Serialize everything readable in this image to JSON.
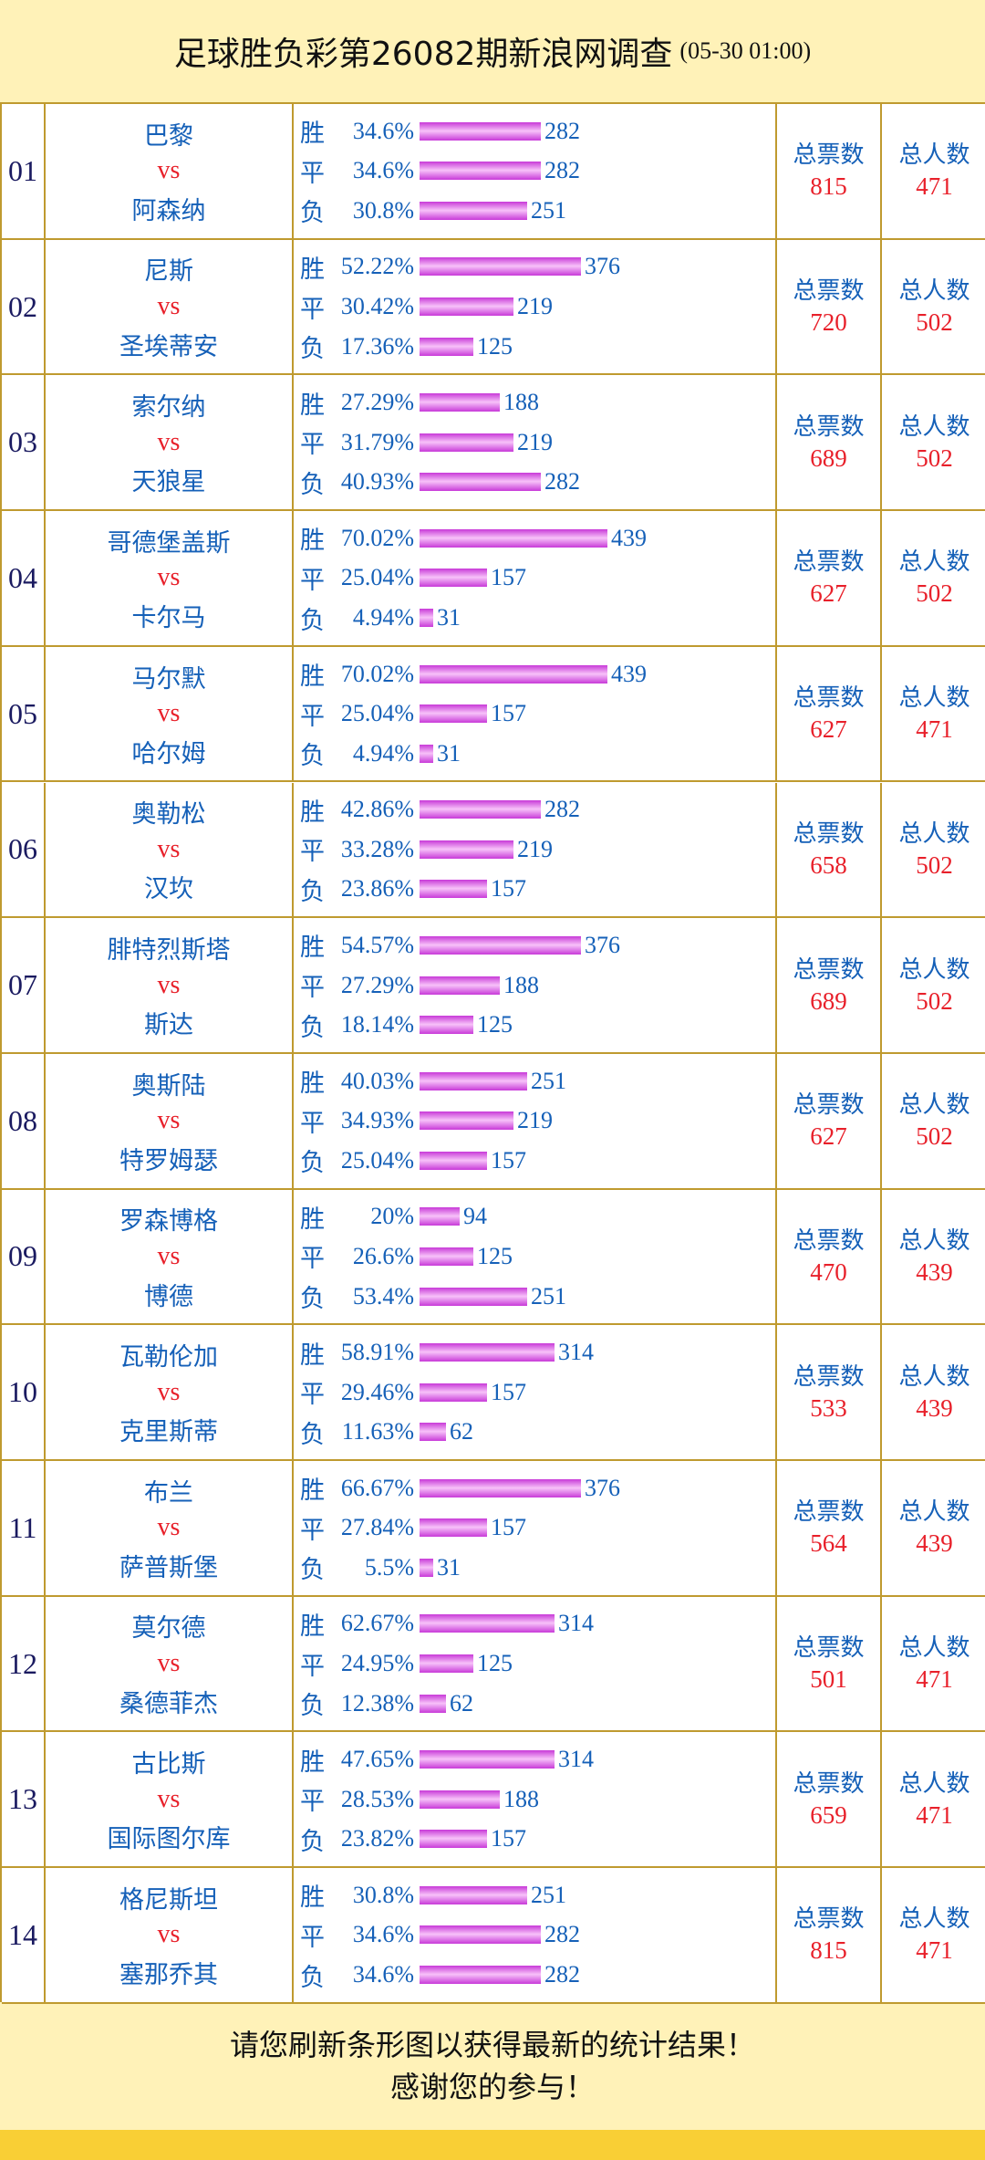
{
  "header": {
    "title": "足球胜负彩第26082期新浪网调查",
    "time": "(05-30 01:00)"
  },
  "labels": {
    "vs": "vs",
    "total_votes": "总票数",
    "total_people": "总人数"
  },
  "colors": {
    "background": "#fff2b8",
    "border": "#bf9a2f",
    "text_blue": "#1560b8",
    "text_red": "#e8202a",
    "bar": "#d94fe6",
    "strip": "#f9cf35"
  },
  "matches": [
    {
      "idx": "01",
      "home": "巴黎",
      "away": "阿森纳",
      "win": {
        "label": "胜",
        "pct": "34.6%",
        "count": 282
      },
      "draw": {
        "label": "平",
        "pct": "34.6%",
        "count": 282
      },
      "lose": {
        "label": "负",
        "pct": "30.8%",
        "count": 251
      },
      "total_votes": "815",
      "total_people": "471"
    },
    {
      "idx": "02",
      "home": "尼斯",
      "away": "圣埃蒂安",
      "win": {
        "label": "胜",
        "pct": "52.22%",
        "count": 376
      },
      "draw": {
        "label": "平",
        "pct": "30.42%",
        "count": 219
      },
      "lose": {
        "label": "负",
        "pct": "17.36%",
        "count": 125
      },
      "total_votes": "720",
      "total_people": "502"
    },
    {
      "idx": "03",
      "home": "索尔纳",
      "away": "天狼星",
      "win": {
        "label": "胜",
        "pct": "27.29%",
        "count": 188
      },
      "draw": {
        "label": "平",
        "pct": "31.79%",
        "count": 219
      },
      "lose": {
        "label": "负",
        "pct": "40.93%",
        "count": 282
      },
      "total_votes": "689",
      "total_people": "502"
    },
    {
      "idx": "04",
      "home": "哥德堡盖斯",
      "away": "卡尔马",
      "win": {
        "label": "胜",
        "pct": "70.02%",
        "count": 439
      },
      "draw": {
        "label": "平",
        "pct": "25.04%",
        "count": 157
      },
      "lose": {
        "label": "负",
        "pct": "4.94%",
        "count": 31
      },
      "total_votes": "627",
      "total_people": "502"
    },
    {
      "idx": "05",
      "home": "马尔默",
      "away": "哈尔姆",
      "win": {
        "label": "胜",
        "pct": "70.02%",
        "count": 439
      },
      "draw": {
        "label": "平",
        "pct": "25.04%",
        "count": 157
      },
      "lose": {
        "label": "负",
        "pct": "4.94%",
        "count": 31
      },
      "total_votes": "627",
      "total_people": "471"
    },
    {
      "idx": "06",
      "home": "奥勒松",
      "away": "汉坎",
      "win": {
        "label": "胜",
        "pct": "42.86%",
        "count": 282
      },
      "draw": {
        "label": "平",
        "pct": "33.28%",
        "count": 219
      },
      "lose": {
        "label": "负",
        "pct": "23.86%",
        "count": 157
      },
      "total_votes": "658",
      "total_people": "502"
    },
    {
      "idx": "07",
      "home": "腓特烈斯塔",
      "away": "斯达",
      "win": {
        "label": "胜",
        "pct": "54.57%",
        "count": 376
      },
      "draw": {
        "label": "平",
        "pct": "27.29%",
        "count": 188
      },
      "lose": {
        "label": "负",
        "pct": "18.14%",
        "count": 125
      },
      "total_votes": "689",
      "total_people": "502"
    },
    {
      "idx": "08",
      "home": "奥斯陆",
      "away": "特罗姆瑟",
      "win": {
        "label": "胜",
        "pct": "40.03%",
        "count": 251
      },
      "draw": {
        "label": "平",
        "pct": "34.93%",
        "count": 219
      },
      "lose": {
        "label": "负",
        "pct": "25.04%",
        "count": 157
      },
      "total_votes": "627",
      "total_people": "502"
    },
    {
      "idx": "09",
      "home": "罗森博格",
      "away": "博德",
      "win": {
        "label": "胜",
        "pct": "20%",
        "count": 94
      },
      "draw": {
        "label": "平",
        "pct": "26.6%",
        "count": 125
      },
      "lose": {
        "label": "负",
        "pct": "53.4%",
        "count": 251
      },
      "total_votes": "470",
      "total_people": "439"
    },
    {
      "idx": "10",
      "home": "瓦勒伦加",
      "away": "克里斯蒂",
      "win": {
        "label": "胜",
        "pct": "58.91%",
        "count": 314
      },
      "draw": {
        "label": "平",
        "pct": "29.46%",
        "count": 157
      },
      "lose": {
        "label": "负",
        "pct": "11.63%",
        "count": 62
      },
      "total_votes": "533",
      "total_people": "439"
    },
    {
      "idx": "11",
      "home": "布兰",
      "away": "萨普斯堡",
      "win": {
        "label": "胜",
        "pct": "66.67%",
        "count": 376
      },
      "draw": {
        "label": "平",
        "pct": "27.84%",
        "count": 157
      },
      "lose": {
        "label": "负",
        "pct": "5.5%",
        "count": 31
      },
      "total_votes": "564",
      "total_people": "439"
    },
    {
      "idx": "12",
      "home": "莫尔德",
      "away": "桑德菲杰",
      "win": {
        "label": "胜",
        "pct": "62.67%",
        "count": 314
      },
      "draw": {
        "label": "平",
        "pct": "24.95%",
        "count": 125
      },
      "lose": {
        "label": "负",
        "pct": "12.38%",
        "count": 62
      },
      "total_votes": "501",
      "total_people": "471"
    },
    {
      "idx": "13",
      "home": "古比斯",
      "away": "国际图尔库",
      "win": {
        "label": "胜",
        "pct": "47.65%",
        "count": 314
      },
      "draw": {
        "label": "平",
        "pct": "28.53%",
        "count": 188
      },
      "lose": {
        "label": "负",
        "pct": "23.82%",
        "count": 157
      },
      "total_votes": "659",
      "total_people": "471"
    },
    {
      "idx": "14",
      "home": "格尼斯坦",
      "away": "塞那乔其",
      "win": {
        "label": "胜",
        "pct": "30.8%",
        "count": 251
      },
      "draw": {
        "label": "平",
        "pct": "34.6%",
        "count": 282
      },
      "lose": {
        "label": "负",
        "pct": "34.6%",
        "count": 282
      },
      "total_votes": "815",
      "total_people": "471"
    }
  ],
  "footer": {
    "line1": "请您刷新条形图以获得最新的统计结果！",
    "line2": "感谢您的参与！"
  }
}
